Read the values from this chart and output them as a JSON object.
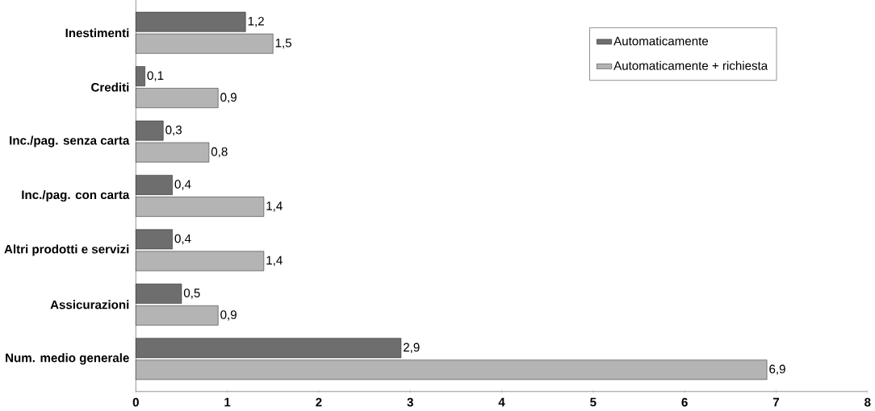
{
  "chart_data": {
    "type": "bar",
    "orientation": "horizontal",
    "categories": [
      "Inestimenti",
      "Crediti",
      "Inc./pag. senza carta",
      "Inc./pag. con carta",
      "Altri prodotti e servizi",
      "Assicurazioni",
      "Num. medio generale"
    ],
    "series": [
      {
        "name": "Automaticamente",
        "color": "#6e6e6e",
        "values": [
          1.2,
          0.1,
          0.3,
          0.4,
          0.4,
          0.5,
          2.9
        ],
        "value_labels": [
          "1,2",
          "0,1",
          "0,3",
          "0,4",
          "0,4",
          "0,5",
          "2,9"
        ]
      },
      {
        "name": "Automaticamente + richiesta",
        "color": "#b4b4b4",
        "values": [
          1.5,
          0.9,
          0.8,
          1.4,
          1.4,
          0.9,
          6.9
        ],
        "value_labels": [
          "1,5",
          "0,9",
          "0,8",
          "1,4",
          "1,4",
          "0,9",
          "6,9"
        ]
      }
    ],
    "xlim": [
      0,
      8
    ],
    "xticks": [
      0,
      1,
      2,
      3,
      4,
      5,
      6,
      7,
      8
    ],
    "legend": "top right",
    "grid": false
  }
}
